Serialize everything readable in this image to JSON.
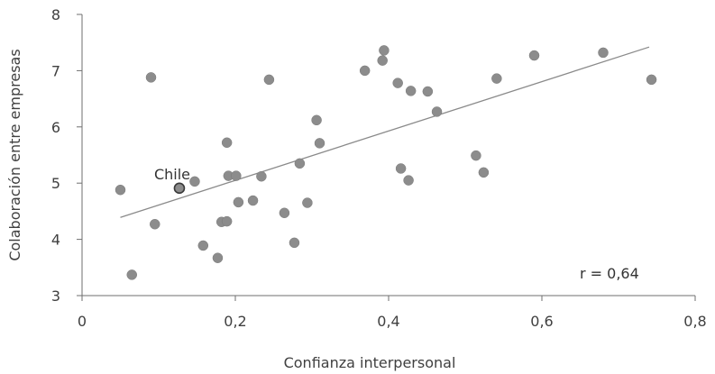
{
  "chart_data": {
    "type": "scatter",
    "title": "",
    "xlabel": "Confianza interpersonal",
    "ylabel": "Colaboración entre empresas",
    "xlim": [
      0,
      0.8
    ],
    "ylim": [
      3,
      8
    ],
    "x_ticks": [
      0,
      0.2,
      0.4,
      0.6,
      0.8
    ],
    "x_tick_labels": [
      "0",
      "0,2",
      "0,4",
      "0,6",
      "0,8"
    ],
    "y_ticks": [
      3,
      4,
      5,
      6,
      7,
      8
    ],
    "y_tick_labels": [
      "3",
      "4",
      "5",
      "6",
      "7",
      "8"
    ],
    "grid": false,
    "legend": "none",
    "colors": {
      "point": "#8c8c8c",
      "trend": "#8a8a8a",
      "axis": "#6f6f6f",
      "text": "#404040"
    },
    "series": [
      {
        "points": [
          [
            0.05,
            4.88
          ],
          [
            0.065,
            3.37
          ],
          [
            0.09,
            6.88
          ],
          [
            0.095,
            4.27
          ],
          [
            0.127,
            4.91
          ],
          [
            0.147,
            5.03
          ],
          [
            0.158,
            3.89
          ],
          [
            0.177,
            3.67
          ],
          [
            0.182,
            4.31
          ],
          [
            0.189,
            4.32
          ],
          [
            0.189,
            5.72
          ],
          [
            0.191,
            5.13
          ],
          [
            0.201,
            5.13
          ],
          [
            0.204,
            4.66
          ],
          [
            0.223,
            4.69
          ],
          [
            0.234,
            5.12
          ],
          [
            0.244,
            6.84
          ],
          [
            0.264,
            4.47
          ],
          [
            0.277,
            3.94
          ],
          [
            0.284,
            5.35
          ],
          [
            0.294,
            4.65
          ],
          [
            0.306,
            6.12
          ],
          [
            0.31,
            5.71
          ],
          [
            0.369,
            7.0
          ],
          [
            0.392,
            7.18
          ],
          [
            0.394,
            7.36
          ],
          [
            0.412,
            6.78
          ],
          [
            0.416,
            5.26
          ],
          [
            0.426,
            5.05
          ],
          [
            0.429,
            6.64
          ],
          [
            0.451,
            6.63
          ],
          [
            0.463,
            6.27
          ],
          [
            0.514,
            5.49
          ],
          [
            0.524,
            5.19
          ],
          [
            0.541,
            6.86
          ],
          [
            0.59,
            7.27
          ],
          [
            0.68,
            7.32
          ],
          [
            0.743,
            6.84
          ]
        ],
        "trendline": {
          "x": [
            0.05,
            0.74
          ],
          "y": [
            4.39,
            7.42
          ]
        }
      }
    ],
    "annotations": [
      {
        "text": "Chile",
        "x": 0.127,
        "y": 4.91,
        "highlight": true
      },
      {
        "text": "r = 0,64"
      }
    ]
  }
}
